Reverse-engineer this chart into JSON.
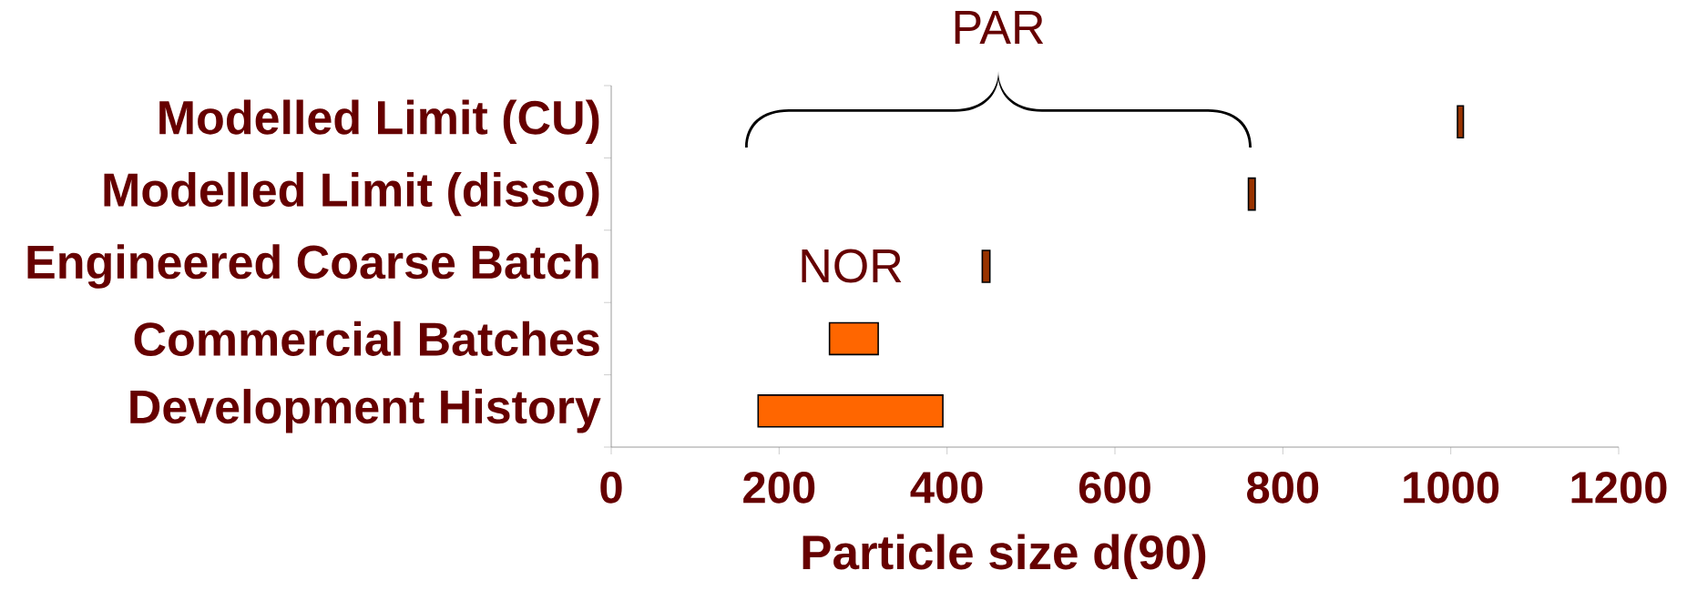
{
  "chart_data": {
    "type": "bar",
    "orientation": "horizontal",
    "categories": [
      "Modelled Limit (CU)",
      "Modelled Limit (disso)",
      "Engineered Coarse Batch",
      "Commercial Batches",
      "Development History"
    ],
    "base": [
      1008,
      759,
      442,
      260,
      175
    ],
    "values": [
      7,
      8,
      9,
      58,
      220
    ],
    "colors": [
      "#993300",
      "#993300",
      "#993300",
      "#ff6600",
      "#ff6600"
    ],
    "xlim": [
      0,
      1200
    ],
    "xticks": [
      0,
      200,
      400,
      600,
      800,
      1000,
      1200
    ],
    "xlabel": "Particle size d(90)",
    "annotations": [
      "PAR",
      "NOR"
    ],
    "grid": false
  }
}
